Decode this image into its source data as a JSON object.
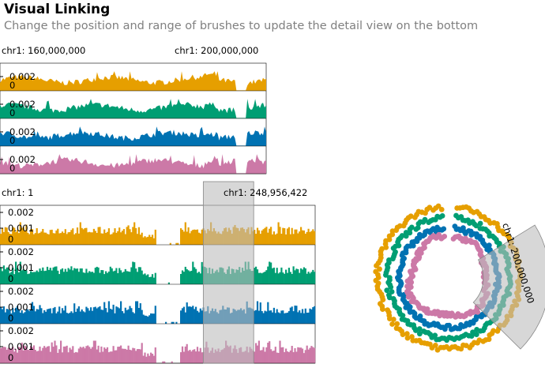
{
  "header": {
    "title": "Visual Linking",
    "subtitle": "Change the position and range of brushes to update the detail view on the bottom"
  },
  "colors": {
    "tracks": [
      "#e69f00",
      "#009e73",
      "#0072b2",
      "#cc79a7"
    ],
    "brush": "#bdbdbd",
    "axis": "#000000"
  },
  "top_view": {
    "start_label": "chr1: 160,000,000",
    "end_label": "chr1: 200,000,000",
    "tracks": [
      {
        "max_tick": "0.002",
        "zero_tick": "0"
      },
      {
        "max_tick": "0.002",
        "zero_tick": "0"
      },
      {
        "max_tick": "0.002",
        "zero_tick": "0"
      },
      {
        "max_tick": "0.002",
        "zero_tick": "0"
      }
    ]
  },
  "bottom_view": {
    "start_label": "chr1: 1",
    "end_label": "chr1: 248,956,422",
    "brush": {
      "start_fraction": 0.645,
      "end_fraction": 0.805
    },
    "tracks": [
      {
        "ticks": [
          "0.002",
          "0.001",
          "0"
        ]
      },
      {
        "ticks": [
          "0.002",
          "0.001",
          "0"
        ]
      },
      {
        "ticks": [
          "0.002",
          "0.001",
          "0"
        ]
      },
      {
        "ticks": [
          "0.002",
          "0.001",
          "0"
        ]
      }
    ]
  },
  "circular_view": {
    "brush_label": "chr1: 200,000,000"
  }
}
